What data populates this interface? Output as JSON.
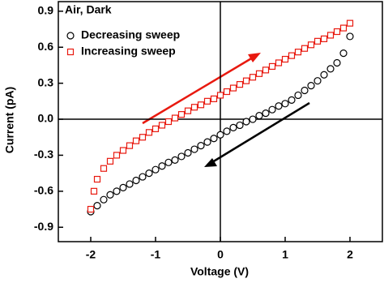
{
  "chart_data": {
    "type": "scatter",
    "legend_title": "Air, Dark",
    "x_label": "Voltage (V)",
    "y_label": "Current (pA)",
    "xlim": [
      -2.5,
      2.5
    ],
    "ylim": [
      -1.02,
      0.98
    ],
    "xticks": [
      -2,
      -1,
      0,
      1,
      2
    ],
    "yticks": [
      -0.9,
      -0.6,
      -0.3,
      {
        "value": 0,
        "label": "0.0"
      },
      0.3,
      0.6,
      0.9
    ],
    "zero_lines": true,
    "legend": "upper left",
    "series": [
      {
        "name": "Decreasing sweep",
        "color": "#000000",
        "marker": "circle",
        "x": [
          -2.0,
          -1.9,
          -1.8,
          -1.7,
          -1.6,
          -1.5,
          -1.4,
          -1.3,
          -1.2,
          -1.1,
          -1.0,
          -0.9,
          -0.8,
          -0.7,
          -0.6,
          -0.5,
          -0.4,
          -0.3,
          -0.2,
          -0.1,
          0,
          0.1,
          0.2,
          0.3,
          0.4,
          0.5,
          0.6,
          0.7,
          0.8,
          0.9,
          1.0,
          1.1,
          1.2,
          1.3,
          1.4,
          1.5,
          1.6,
          1.7,
          1.8,
          1.9,
          2.0
        ],
        "values": [
          -0.77,
          -0.72,
          -0.67,
          -0.63,
          -0.6,
          -0.57,
          -0.54,
          -0.51,
          -0.48,
          -0.45,
          -0.42,
          -0.39,
          -0.36,
          -0.34,
          -0.31,
          -0.28,
          -0.25,
          -0.22,
          -0.19,
          -0.16,
          -0.13,
          -0.1,
          -0.07,
          -0.05,
          -0.02,
          0,
          0.03,
          0.05,
          0.08,
          0.11,
          0.13,
          0.16,
          0.2,
          0.24,
          0.28,
          0.32,
          0.37,
          0.42,
          0.47,
          0.55,
          0.69
        ]
      },
      {
        "name": "Increasing sweep",
        "color": "#e8190f",
        "marker": "square",
        "x": [
          -2.0,
          -1.95,
          -1.9,
          -1.8,
          -1.7,
          -1.6,
          -1.5,
          -1.4,
          -1.3,
          -1.2,
          -1.1,
          -1.0,
          -0.9,
          -0.8,
          -0.7,
          -0.6,
          -0.5,
          -0.4,
          -0.3,
          -0.2,
          -0.1,
          0,
          0.1,
          0.2,
          0.3,
          0.4,
          0.5,
          0.6,
          0.7,
          0.8,
          0.9,
          1.0,
          1.1,
          1.2,
          1.3,
          1.4,
          1.5,
          1.6,
          1.7,
          1.8,
          1.9,
          2.0
        ],
        "values": [
          -0.75,
          -0.6,
          -0.5,
          -0.41,
          -0.35,
          -0.3,
          -0.26,
          -0.22,
          -0.18,
          -0.15,
          -0.11,
          -0.08,
          -0.05,
          -0.02,
          0.01,
          0.04,
          0.07,
          0.1,
          0.12,
          0.15,
          0.17,
          0.2,
          0.23,
          0.26,
          0.29,
          0.32,
          0.35,
          0.38,
          0.41,
          0.44,
          0.47,
          0.5,
          0.53,
          0.56,
          0.59,
          0.62,
          0.65,
          0.67,
          0.7,
          0.73,
          0.76,
          0.8
        ]
      }
    ]
  }
}
